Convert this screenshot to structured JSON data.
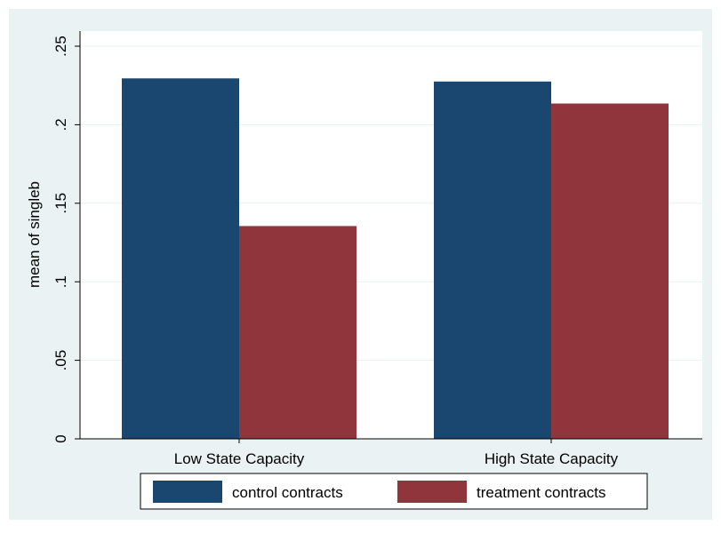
{
  "chart_data": {
    "type": "bar",
    "categories": [
      "Low State Capacity",
      "High State Capacity"
    ],
    "series": [
      {
        "name": "control contracts",
        "color": "#1a476f",
        "values": [
          0.2295,
          0.2275
        ]
      },
      {
        "name": "treatment contracts",
        "color": "#90353b",
        "values": [
          0.1355,
          0.2135
        ]
      }
    ],
    "ylabel": "mean of singleb",
    "ylim": [
      0,
      0.25
    ],
    "yticks": [
      0,
      0.05,
      0.1,
      0.15,
      0.2,
      0.25
    ],
    "ytick_labels": [
      "0",
      ".05",
      ".1",
      ".15",
      ".2",
      ".25"
    ],
    "grid": true,
    "legend_position": "bottom",
    "colors": {
      "plot_background": "#ffffff",
      "outer_background": "#eaf2f3",
      "grid": "#eaf2f3"
    }
  }
}
